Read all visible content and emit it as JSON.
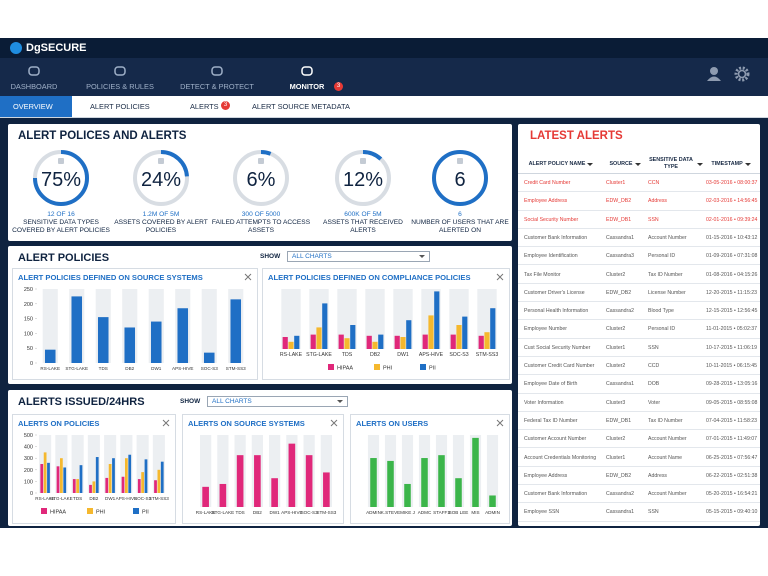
{
  "header": {
    "logo": "DgSECURE"
  },
  "nav": {
    "items": [
      {
        "label": "DASHBOARD"
      },
      {
        "label": "POLICIES & RULES"
      },
      {
        "label": "DETECT & PROTECT"
      },
      {
        "label": "MONITOR",
        "badge": 3
      }
    ],
    "active": 3
  },
  "tabs": {
    "items": [
      {
        "label": "OVERVIEW"
      },
      {
        "label": "ALERT POLICIES"
      },
      {
        "label": "ALERTS",
        "badge": 3
      },
      {
        "label": "ALERT SOURCE METADATA"
      }
    ],
    "active": 0
  },
  "summary": {
    "title": "ALERT POLICES AND ALERTS",
    "gauges": [
      {
        "value": 75,
        "value_label": "75%",
        "detail": "12 OF 16",
        "caption": "SENSITIVE DATA TYPES COVERED BY ALERT POLICIES"
      },
      {
        "value": 24,
        "value_label": "24%",
        "detail": "1.2M OF 5M",
        "caption": "ASSETS COVERED BY ALERT POLICIES"
      },
      {
        "value": 6,
        "value_label": "6%",
        "detail": "300 OF 5000",
        "caption": "FAILED ATTEMPTS TO ACCESS ASSETS"
      },
      {
        "value": 12,
        "value_label": "12%",
        "detail": "600K OF 5M",
        "caption": "ASSETS THAT RECEIVED ALERTS"
      },
      {
        "value": 6,
        "detail": "6",
        "caption": "NUMBER OF USERS THAT ARE ALERTED ON"
      }
    ]
  },
  "alert_policies": {
    "title": "ALERT POLICIES",
    "show_label": "SHOW",
    "show_value": "ALL CHARTS"
  },
  "alerts_issued": {
    "title": "ALERTS ISSUED/24HRS",
    "show_label": "SHOW",
    "show_value": "ALL CHARTS"
  },
  "chart_data": [
    {
      "type": "bar",
      "title": "ALERT POLICIES DEFINED ON SOURCE SYSTEMS",
      "categories": [
        "RS-LAKE",
        "STG-LAKE",
        "TDS",
        "DB2",
        "DW1",
        "APS-HIVE",
        "SOC-S3",
        "STM-SS3"
      ],
      "values": [
        45,
        225,
        155,
        120,
        140,
        185,
        35,
        215
      ],
      "color": "#1f6fc5",
      "ylim": [
        0,
        250
      ],
      "yticks": [
        0,
        50,
        100,
        150,
        200,
        250
      ]
    },
    {
      "type": "bar",
      "title": "ALERT POLICIES DEFINED ON COMPLIANCE POLICIES",
      "categories": [
        "RS-LAKE",
        "STG-LAKE",
        "TDS",
        "DB2",
        "DW1",
        "APS-HIVE",
        "SOC-S3",
        "STM-SS3"
      ],
      "ylim": [
        0,
        250
      ],
      "series": [
        {
          "name": "HIPAA",
          "color": "#e0287a",
          "values": [
            50,
            60,
            60,
            55,
            55,
            60,
            60,
            55
          ]
        },
        {
          "name": "PHI",
          "color": "#f5b82e",
          "values": [
            30,
            90,
            45,
            30,
            50,
            140,
            100,
            70
          ]
        },
        {
          "name": "PII",
          "color": "#1f6fc5",
          "values": [
            55,
            190,
            100,
            60,
            120,
            240,
            135,
            170
          ]
        }
      ]
    },
    {
      "type": "bar",
      "title": "ALERTS ON POLICIES",
      "categories": [
        "RS-LAKE",
        "STG-LAKE",
        "TDS",
        "DB2",
        "DW1",
        "APS-HIVE",
        "SOC-S3",
        "STM-SS3"
      ],
      "ylim": [
        0,
        500
      ],
      "yticks": [
        0,
        100,
        200,
        300,
        400,
        500
      ],
      "series": [
        {
          "name": "HIPAA",
          "color": "#e0287a",
          "values": [
            250,
            230,
            120,
            70,
            130,
            140,
            120,
            110
          ]
        },
        {
          "name": "PHI",
          "color": "#f5b82e",
          "values": [
            350,
            300,
            120,
            100,
            250,
            300,
            180,
            200
          ]
        },
        {
          "name": "PII",
          "color": "#1f6fc5",
          "values": [
            260,
            220,
            240,
            310,
            300,
            330,
            290,
            270
          ]
        }
      ]
    },
    {
      "type": "bar",
      "title": "ALERTS ON SOURCE SYSTEMS",
      "categories": [
        "RS-LAKE",
        "STG-LAKE",
        "TDS",
        "DB2",
        "DW1",
        "APS-HIVE",
        "SOC-S3",
        "STM-SS3"
      ],
      "values": [
        7,
        8,
        18,
        18,
        10,
        22,
        18,
        12
      ],
      "color": "#e0287a",
      "ylim": [
        0,
        25
      ]
    },
    {
      "type": "bar",
      "title": "ALERTS ON USERS",
      "categories": [
        "ADMIN",
        "K.STEVE",
        "MIKE J",
        "ADMC",
        "STAFF1",
        "BOB LEE",
        "MIS",
        "ADMIN"
      ],
      "values": [
        17,
        16,
        8,
        17,
        18,
        10,
        24,
        4
      ],
      "color": "#3bb54a",
      "ylim": [
        0,
        25
      ]
    }
  ],
  "latest_alerts": {
    "title": "LATEST ALERTS",
    "highlight_color": "#e53935",
    "columns": [
      "ALERT POLICY NAME",
      "SOURCE",
      "SENSITIVE DATA TYPE",
      "TIMESTAMP"
    ],
    "rows": [
      {
        "cells": [
          "Credit Card Number",
          "Cluster1",
          "CCN",
          "03-05-2016 • 08:00:37"
        ],
        "highlight": true
      },
      {
        "cells": [
          "Employee Address",
          "EDW_DB2",
          "Address",
          "02-03-2016 • 14:56:45"
        ],
        "highlight": true
      },
      {
        "cells": [
          "Social Security Number",
          "EDW_DB1",
          "SSN",
          "02-01-2016 • 09:39:24"
        ],
        "highlight": true
      },
      {
        "cells": [
          "Customer Bank Information",
          "Cassandra1",
          "Account Number",
          "01-15-2016 • 10:43:12"
        ]
      },
      {
        "cells": [
          "Employee Identification",
          "Cassandra3",
          "Personal ID",
          "01-09-2016 • 07:31:08"
        ]
      },
      {
        "cells": [
          "Tax File Monitor",
          "Cluster2",
          "Tax ID Number",
          "01-08-2016 • 04:15:26"
        ]
      },
      {
        "cells": [
          "Customer Driver's License",
          "EDW_DB2",
          "License Number",
          "12-20-2015 • 11:15:23"
        ]
      },
      {
        "cells": [
          "Personal Health Information",
          "Cassandra2",
          "Blood Type",
          "12-15-2015 • 12:56:45"
        ]
      },
      {
        "cells": [
          "Employee Number",
          "Cluster2",
          "Personal ID",
          "11-01-2015 • 05:02:37"
        ]
      },
      {
        "cells": [
          "Cust Social Security Number",
          "Cluster1",
          "SSN",
          "10-17-2015 • 11:06:19"
        ]
      },
      {
        "cells": [
          "Customer Credit Card Number",
          "Cluster2",
          "CCD",
          "10-11-2015 • 06:15:45"
        ]
      },
      {
        "cells": [
          "Employee Date of Birth",
          "Cassandra1",
          "DOB",
          "09-28-2015 • 13:05:16"
        ]
      },
      {
        "cells": [
          "Voter Information",
          "Cluster3",
          "Voter",
          "09-05-2015 • 08:55:08"
        ]
      },
      {
        "cells": [
          "Federal Tax ID Number",
          "EDW_DB1",
          "Tax ID Number",
          "07-04-2015 • 11:58:23"
        ]
      },
      {
        "cells": [
          "Customer Account Number",
          "Cluster2",
          "Account Number",
          "07-01-2015 • 11:49:07"
        ]
      },
      {
        "cells": [
          "Account Credentials Monitoring",
          "Cluster1",
          "Account Name",
          "06-25-2015 • 07:56:47"
        ]
      },
      {
        "cells": [
          "Employee Address",
          "EDW_DB2",
          "Address",
          "06-22-2015 • 02:51:38"
        ]
      },
      {
        "cells": [
          "Customer Bank Information",
          "Cassandra2",
          "Account Number",
          "05-20-2015 • 16:54:21"
        ]
      },
      {
        "cells": [
          "Employee SSN",
          "Cassandra1",
          "SSN",
          "05-15-2015 • 09:40:10"
        ]
      }
    ]
  }
}
